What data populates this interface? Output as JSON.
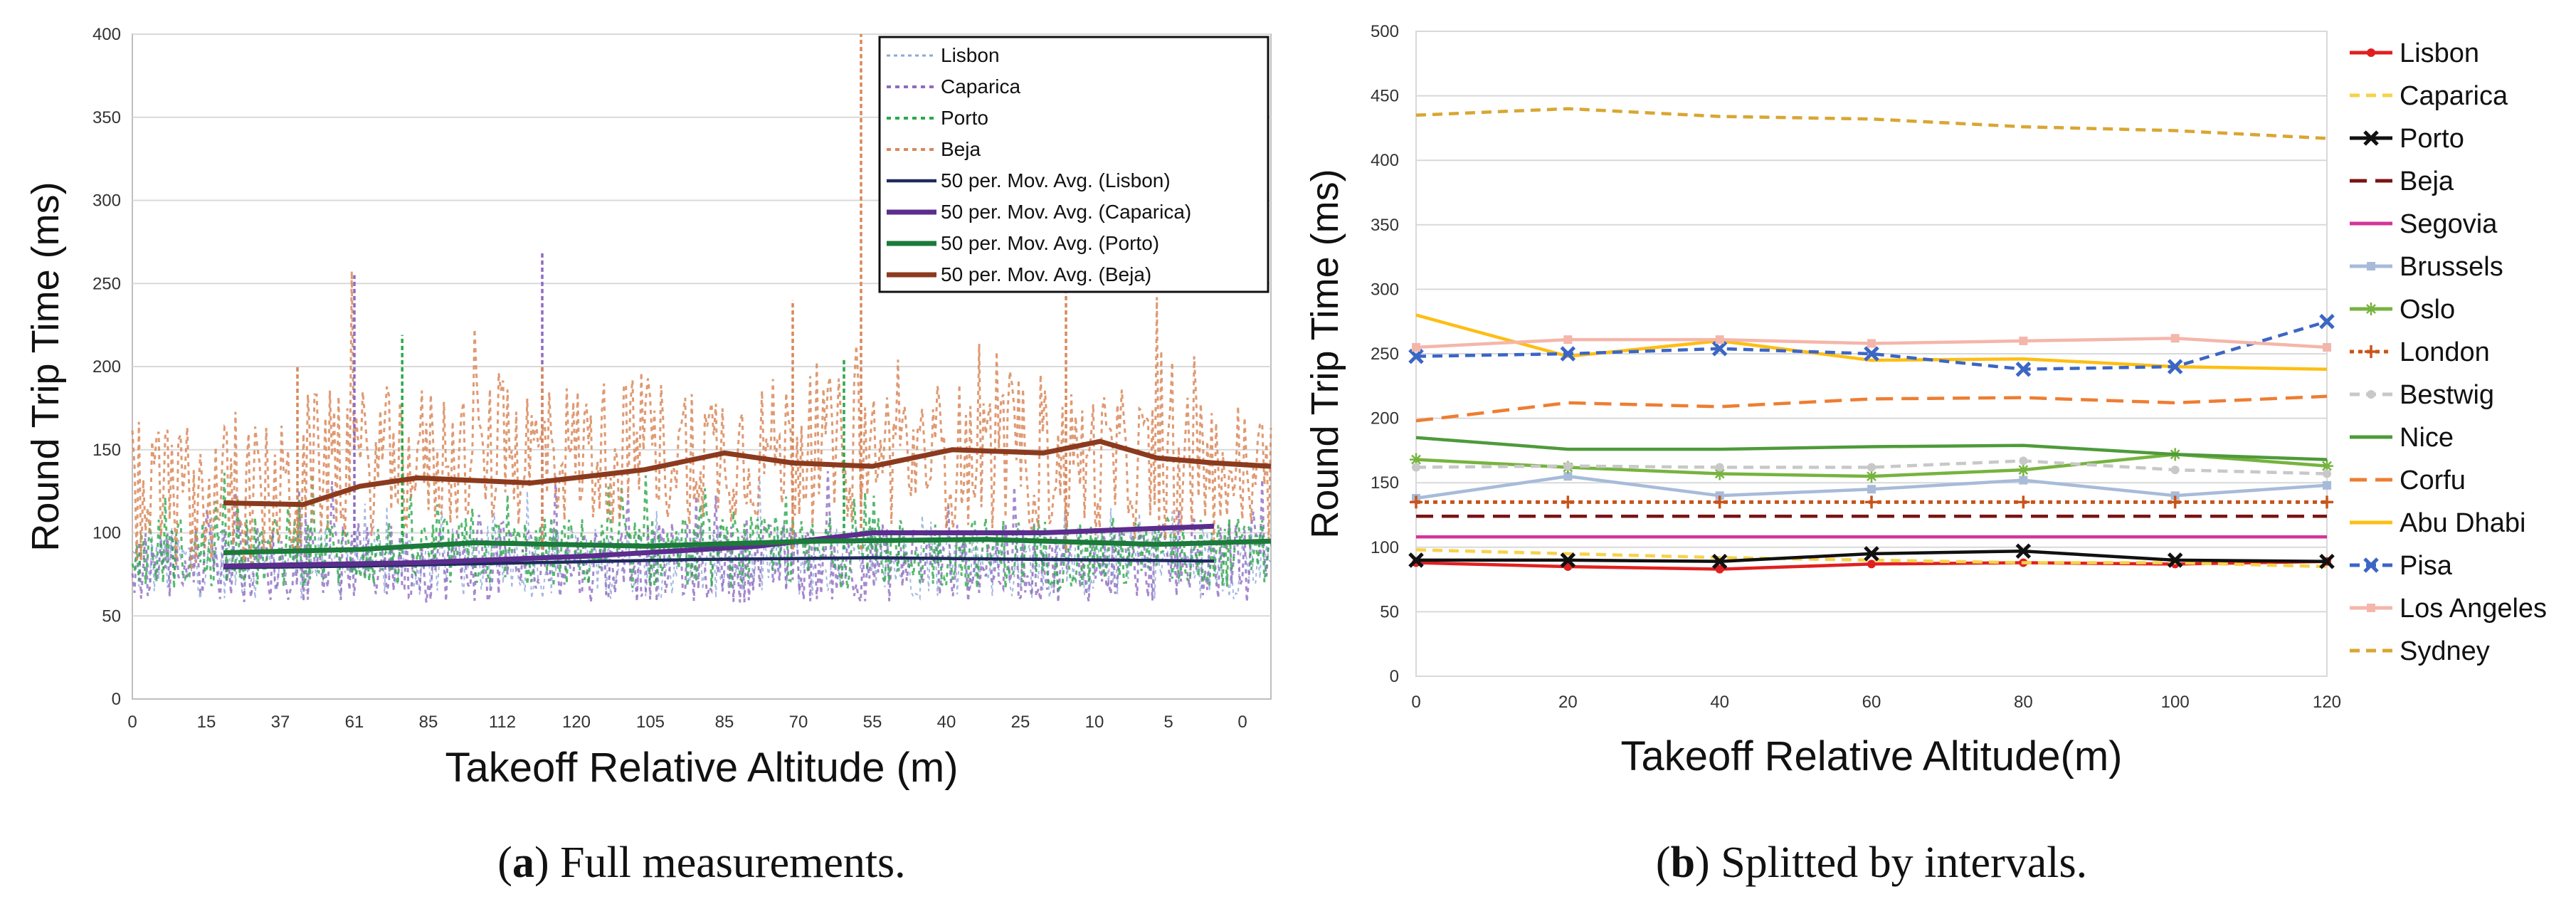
{
  "chart_data": [
    {
      "type": "line",
      "title": "",
      "xlabel": "Takeoff Relative Altitude (m)",
      "ylabel": "Round Trip Time (ms)",
      "ylim": [
        0,
        400
      ],
      "yticks": [
        "0",
        "50",
        "100",
        "150",
        "200",
        "250",
        "300",
        "350",
        "400"
      ],
      "xtick_labels": [
        "0",
        "15",
        "37",
        "61",
        "85",
        "112",
        "120",
        "105",
        "85",
        "70",
        "55",
        "40",
        "25",
        "10",
        "5",
        "0"
      ],
      "grid": "horizontal",
      "legend_position": "top-right",
      "caption_prefix": "a",
      "caption_text": ") Full measurements.",
      "series": [
        {
          "name": "Lisbon",
          "style": "dotted-thin",
          "color": "#8FA8D8",
          "base": 82,
          "noise": 22
        },
        {
          "name": "Caparica",
          "style": "dotted",
          "color": "#8E6BC0",
          "base": 82,
          "noise": 24
        },
        {
          "name": "Porto",
          "style": "dotted",
          "color": "#2CA84A",
          "base": 88,
          "noise": 22
        },
        {
          "name": "Beja",
          "style": "dotted",
          "color": "#D9885A",
          "base": 132,
          "noise": 45
        },
        {
          "name": "50 per. Mov. Avg. (Lisbon)",
          "style": "solid",
          "color": "#1F2A5C",
          "x": [
            0.08,
            0.2,
            0.35,
            0.5,
            0.65,
            0.8,
            0.95
          ],
          "y": [
            79,
            80,
            82,
            84,
            85,
            84,
            83
          ]
        },
        {
          "name": "50 per. Mov. Avg. (Caparica)",
          "style": "solid-thick",
          "color": "#5B2D8E",
          "x": [
            0.08,
            0.25,
            0.4,
            0.55,
            0.65,
            0.8,
            0.95
          ],
          "y": [
            80,
            82,
            86,
            92,
            100,
            100,
            104
          ]
        },
        {
          "name": "50 per. Mov. Avg. (Porto)",
          "style": "solid-thick",
          "color": "#1C7A3A",
          "x": [
            0.08,
            0.2,
            0.3,
            0.45,
            0.6,
            0.75,
            0.9,
            1.0
          ],
          "y": [
            88,
            90,
            94,
            92,
            95,
            96,
            93,
            95
          ]
        },
        {
          "name": "50 per. Mov. Avg. (Beja)",
          "style": "solid-thick",
          "color": "#8B3A1E",
          "x": [
            0.08,
            0.15,
            0.2,
            0.25,
            0.35,
            0.45,
            0.52,
            0.58,
            0.65,
            0.72,
            0.8,
            0.85,
            0.9,
            0.95,
            1.0
          ],
          "y": [
            118,
            117,
            128,
            133,
            130,
            138,
            148,
            142,
            140,
            150,
            148,
            155,
            145,
            142,
            140
          ]
        }
      ],
      "spikes": [
        {
          "series": "Caparica",
          "x": 0.195,
          "y": 255
        },
        {
          "series": "Caparica",
          "x": 0.36,
          "y": 269
        },
        {
          "series": "Porto",
          "x": 0.237,
          "y": 219
        },
        {
          "series": "Porto",
          "x": 0.625,
          "y": 205
        },
        {
          "series": "Beja",
          "x": 0.64,
          "y": 400
        },
        {
          "series": "Beja",
          "x": 0.82,
          "y": 247
        },
        {
          "series": "Beja",
          "x": 0.58,
          "y": 240
        },
        {
          "series": "Beja",
          "x": 0.36,
          "y": 200
        },
        {
          "series": "Beja",
          "x": 0.145,
          "y": 200
        }
      ]
    },
    {
      "type": "line",
      "title": "",
      "xlabel": "Takeoff Relative Altitude(m)",
      "ylabel": "Round Trip Time (ms)",
      "x": [
        0,
        20,
        40,
        60,
        80,
        100,
        120
      ],
      "xlim": [
        0,
        120
      ],
      "ylim": [
        0,
        500
      ],
      "yticks": [
        "0",
        "50",
        "100",
        "150",
        "200",
        "250",
        "300",
        "350",
        "400",
        "450",
        "500"
      ],
      "xticks": [
        "0",
        "20",
        "40",
        "60",
        "80",
        "100",
        "120"
      ],
      "grid": "horizontal",
      "legend_position": "right",
      "caption_prefix": "b",
      "caption_text": ") Splitted by intervals.",
      "series": [
        {
          "name": "Lisbon",
          "style": "solid",
          "color": "#E02020",
          "marker": "dot",
          "values": [
            88,
            85,
            83,
            87,
            88,
            87,
            89
          ]
        },
        {
          "name": "Caparica",
          "style": "dashed",
          "color": "#F7D24A",
          "values": [
            98,
            95,
            92,
            90,
            88,
            88,
            85
          ]
        },
        {
          "name": "Porto",
          "style": "solid",
          "color": "#111111",
          "marker": "x",
          "values": [
            90,
            90,
            89,
            95,
            97,
            90,
            89
          ]
        },
        {
          "name": "Beja",
          "style": "dashed-long",
          "color": "#7A1414",
          "values": [
            124,
            124,
            124,
            124,
            124,
            124,
            124
          ]
        },
        {
          "name": "Segovia",
          "style": "solid",
          "color": "#D4359A",
          "values": [
            108,
            108,
            108,
            108,
            108,
            108,
            108
          ]
        },
        {
          "name": "Brussels",
          "style": "solid",
          "color": "#A7BBD9",
          "marker": "square",
          "values": [
            138,
            155,
            140,
            145,
            152,
            140,
            148
          ]
        },
        {
          "name": "Oslo",
          "style": "solid",
          "color": "#76B33F",
          "marker": "star",
          "values": [
            168,
            162,
            157,
            155,
            160,
            172,
            163
          ]
        },
        {
          "name": "London",
          "style": "dotted",
          "color": "#C8541A",
          "marker": "plus",
          "values": [
            135,
            135,
            135,
            135,
            135,
            135,
            135
          ]
        },
        {
          "name": "Bestwig",
          "style": "dashed",
          "color": "#C8C8C8",
          "marker": "dot",
          "values": [
            162,
            163,
            162,
            162,
            167,
            160,
            157
          ]
        },
        {
          "name": "Nice",
          "style": "solid",
          "color": "#4E9A3A",
          "values": [
            185,
            176,
            176,
            178,
            179,
            172,
            168
          ]
        },
        {
          "name": "Corfu",
          "style": "dashed-long",
          "color": "#EE7D32",
          "values": [
            198,
            212,
            209,
            215,
            216,
            212,
            217
          ]
        },
        {
          "name": "Abu Dhabi",
          "style": "solid",
          "color": "#FDBE14",
          "values": [
            280,
            248,
            260,
            245,
            246,
            240,
            238
          ]
        },
        {
          "name": "Pisa",
          "style": "dashed",
          "color": "#3B66C4",
          "marker": "x",
          "values": [
            248,
            250,
            254,
            250,
            238,
            240,
            275
          ]
        },
        {
          "name": "Los Angeles",
          "style": "solid",
          "color": "#F4B6AA",
          "marker": "square",
          "values": [
            255,
            261,
            261,
            258,
            260,
            262,
            255
          ]
        },
        {
          "name": "Sydney",
          "style": "dashed",
          "color": "#D8A632",
          "values": [
            435,
            440,
            434,
            432,
            426,
            423,
            417
          ]
        }
      ]
    }
  ]
}
